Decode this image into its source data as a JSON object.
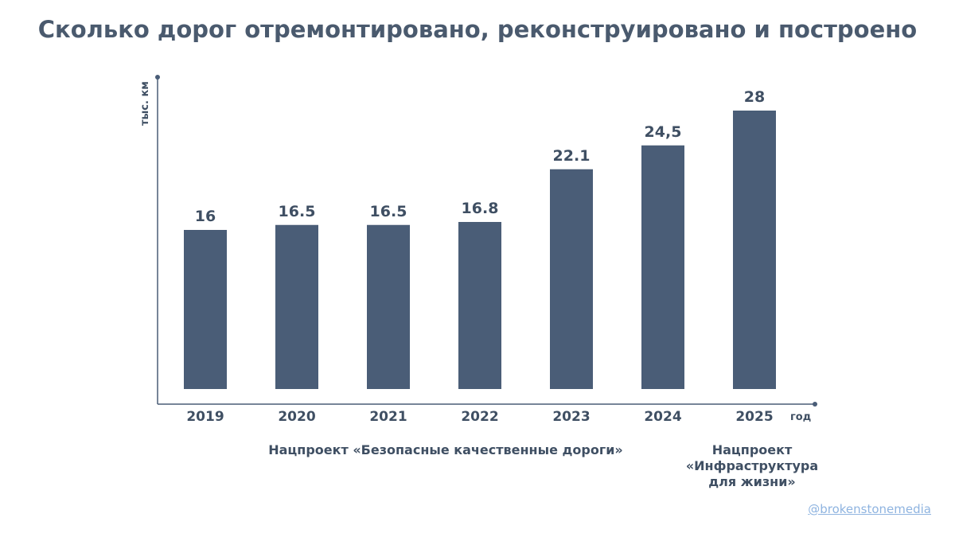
{
  "title": "Сколько дорог отремонтировано, реконструировано и построено",
  "chart_data": {
    "type": "bar",
    "title": "Сколько дорог отремонтировано, реконструировано и построено",
    "categories": [
      "2019",
      "2020",
      "2021",
      "2022",
      "2023",
      "2024",
      "2025"
    ],
    "values": [
      16,
      16.5,
      16.5,
      16.8,
      22.1,
      24.5,
      28
    ],
    "data_labels": [
      "16",
      "16.5",
      "16.5",
      "16.8",
      "22.1",
      "24,5",
      "28"
    ],
    "xlabel": "год",
    "ylabel": "тыс. км",
    "ylim": [
      0,
      28
    ],
    "grid": false,
    "bar_color": "#4a5d77"
  },
  "projects": {
    "bkd": "Нацпроект «Безопасные качественные дороги»",
    "infra_lines": [
      "Нацпроект",
      "«Инфраструктура",
      "для жизни»"
    ]
  },
  "watermark": "@brokenstonemedia",
  "colors": {
    "text": "#3f4f63",
    "bar": "#4a5d77",
    "axis": "#4a5d77",
    "watermark": "#8fb4e0"
  }
}
